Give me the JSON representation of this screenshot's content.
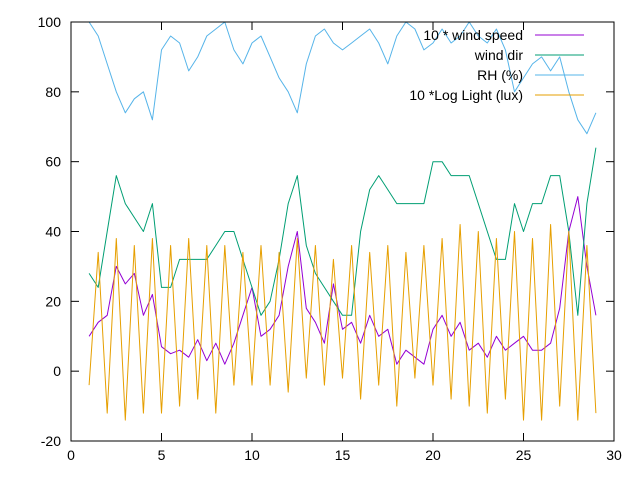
{
  "chart_data": {
    "type": "line",
    "title": "",
    "xlabel": "",
    "ylabel": "",
    "xlim": [
      0,
      30
    ],
    "ylim": [
      -20,
      100
    ],
    "x_ticks": [
      "0",
      "5",
      "10",
      "15",
      "20",
      "25",
      "30"
    ],
    "y_ticks": [
      "-20",
      "0",
      "20",
      "40",
      "60",
      "80",
      "100"
    ],
    "grid": false,
    "legend_position": "top-right",
    "series": [
      {
        "name": "10 * wind speed",
        "color": "#9400d3",
        "x": [
          1.0,
          1.5,
          2.0,
          2.5,
          3.0,
          3.5,
          4.0,
          4.5,
          5.0,
          5.5,
          6.0,
          6.5,
          7.0,
          7.5,
          8.0,
          8.5,
          9.0,
          9.5,
          10.0,
          10.5,
          11.0,
          11.5,
          12.0,
          12.5,
          13.0,
          13.5,
          14.0,
          14.5,
          15.0,
          15.5,
          16.0,
          16.5,
          17.0,
          17.5,
          18.0,
          18.5,
          19.0,
          19.5,
          20.0,
          20.5,
          21.0,
          21.5,
          22.0,
          22.5,
          23.0,
          23.5,
          24.0,
          24.5,
          25.0,
          25.5,
          26.0,
          26.5,
          27.0,
          27.5,
          28.0,
          28.5,
          29.0
        ],
        "values": [
          10,
          14,
          16,
          30,
          25,
          28,
          16,
          22,
          7,
          5,
          6,
          4,
          9,
          3,
          8,
          2,
          8,
          16,
          24,
          10,
          12,
          16,
          30,
          40,
          18,
          14,
          8,
          25,
          12,
          14,
          8,
          16,
          10,
          12,
          2,
          6,
          4,
          2,
          12,
          16,
          10,
          14,
          6,
          8,
          4,
          10,
          6,
          8,
          10,
          6,
          6,
          8,
          18,
          40,
          50,
          30,
          16
        ]
      },
      {
        "name": "wind dir",
        "color": "#009e73",
        "x": [
          1.0,
          1.5,
          2.0,
          2.5,
          3.0,
          3.5,
          4.0,
          4.5,
          5.0,
          5.5,
          6.0,
          6.5,
          7.0,
          7.5,
          8.0,
          8.5,
          9.0,
          9.5,
          10.0,
          10.5,
          11.0,
          11.5,
          12.0,
          12.5,
          13.0,
          13.5,
          14.0,
          14.5,
          15.0,
          15.5,
          16.0,
          16.5,
          17.0,
          17.5,
          18.0,
          18.5,
          19.0,
          19.5,
          20.0,
          20.5,
          21.0,
          21.5,
          22.0,
          22.5,
          23.0,
          23.5,
          24.0,
          24.5,
          25.0,
          25.5,
          26.0,
          26.5,
          27.0,
          27.5,
          28.0,
          28.5,
          29.0
        ],
        "values": [
          28,
          24,
          40,
          56,
          48,
          44,
          40,
          48,
          24,
          24,
          32,
          32,
          32,
          32,
          36,
          40,
          40,
          32,
          24,
          16,
          20,
          32,
          48,
          56,
          36,
          28,
          24,
          20,
          16,
          16,
          40,
          52,
          56,
          52,
          48,
          48,
          48,
          48,
          60,
          60,
          56,
          56,
          56,
          48,
          40,
          32,
          32,
          48,
          40,
          48,
          48,
          56,
          56,
          40,
          16,
          48,
          64
        ]
      },
      {
        "name": "RH (%)",
        "color": "#56b4e9",
        "x": [
          1.0,
          1.5,
          2.0,
          2.5,
          3.0,
          3.5,
          4.0,
          4.5,
          5.0,
          5.5,
          6.0,
          6.5,
          7.0,
          7.5,
          8.0,
          8.5,
          9.0,
          9.5,
          10.0,
          10.5,
          11.0,
          11.5,
          12.0,
          12.5,
          13.0,
          13.5,
          14.0,
          14.5,
          15.0,
          15.5,
          16.0,
          16.5,
          17.0,
          17.5,
          18.0,
          18.5,
          19.0,
          19.5,
          20.0,
          20.5,
          21.0,
          21.5,
          22.0,
          22.5,
          23.0,
          23.5,
          24.0,
          24.5,
          25.0,
          25.5,
          26.0,
          26.5,
          27.0,
          27.5,
          28.0,
          28.5,
          29.0
        ],
        "values": [
          100,
          96,
          88,
          80,
          74,
          78,
          80,
          72,
          92,
          96,
          94,
          86,
          90,
          96,
          98,
          100,
          92,
          88,
          94,
          96,
          90,
          84,
          80,
          74,
          88,
          96,
          98,
          94,
          92,
          94,
          96,
          98,
          94,
          88,
          96,
          100,
          98,
          92,
          94,
          98,
          94,
          96,
          100,
          96,
          94,
          98,
          92,
          80,
          84,
          88,
          90,
          86,
          90,
          80,
          72,
          68,
          74
        ]
      },
      {
        "name": "10 *Log Light (lux)",
        "color": "#e69f00",
        "x": [
          1.0,
          1.5,
          2.0,
          2.5,
          3.0,
          3.5,
          4.0,
          4.5,
          5.0,
          5.5,
          6.0,
          6.5,
          7.0,
          7.5,
          8.0,
          8.5,
          9.0,
          9.5,
          10.0,
          10.5,
          11.0,
          11.5,
          12.0,
          12.5,
          13.0,
          13.5,
          14.0,
          14.5,
          15.0,
          15.5,
          16.0,
          16.5,
          17.0,
          17.5,
          18.0,
          18.5,
          19.0,
          19.5,
          20.0,
          20.5,
          21.0,
          21.5,
          22.0,
          22.5,
          23.0,
          23.5,
          24.0,
          24.5,
          25.0,
          25.5,
          26.0,
          26.5,
          27.0,
          27.5,
          28.0,
          28.5,
          29.0
        ],
        "values": [
          -4,
          34,
          -12,
          38,
          -14,
          36,
          -12,
          38,
          -12,
          36,
          -10,
          38,
          -8,
          36,
          -12,
          36,
          -4,
          34,
          -4,
          36,
          -4,
          34,
          -6,
          38,
          -2,
          36,
          -4,
          32,
          -2,
          36,
          -8,
          34,
          -4,
          36,
          -10,
          34,
          -2,
          36,
          -4,
          38,
          -8,
          42,
          -10,
          40,
          -12,
          38,
          -8,
          40,
          -14,
          38,
          -14,
          42,
          -10,
          40,
          -14,
          36,
          -12
        ]
      }
    ]
  }
}
